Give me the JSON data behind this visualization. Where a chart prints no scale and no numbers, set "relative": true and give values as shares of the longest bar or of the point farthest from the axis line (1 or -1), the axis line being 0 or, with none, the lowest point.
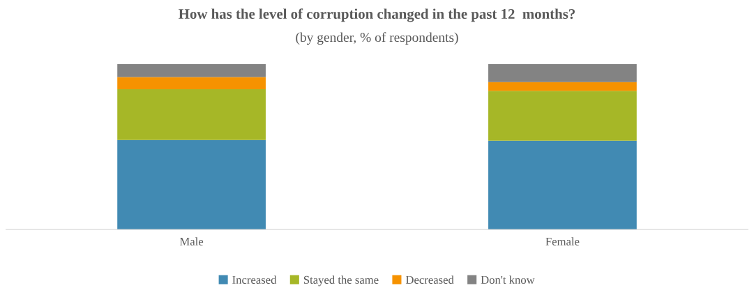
{
  "chart_data": {
    "type": "bar",
    "title": "How has the level of corruption changed in the past 12  months?",
    "subtitle": "(by gender, % of respondents)",
    "categories": [
      "Male",
      "Female"
    ],
    "stacked": true,
    "relative": true,
    "legend": "bottom",
    "grid": false,
    "series": [
      {
        "name": "Increased",
        "color": "#418ab3",
        "values": [
          0.541,
          0.537
        ]
      },
      {
        "name": "Stayed the same",
        "color": "#a6b727",
        "values": [
          0.306,
          0.301
        ]
      },
      {
        "name": "Decreased",
        "color": "#f69200",
        "values": [
          0.074,
          0.052
        ]
      },
      {
        "name": "Don't know",
        "color": "#838383",
        "values": [
          0.079,
          0.109
        ]
      }
    ]
  }
}
